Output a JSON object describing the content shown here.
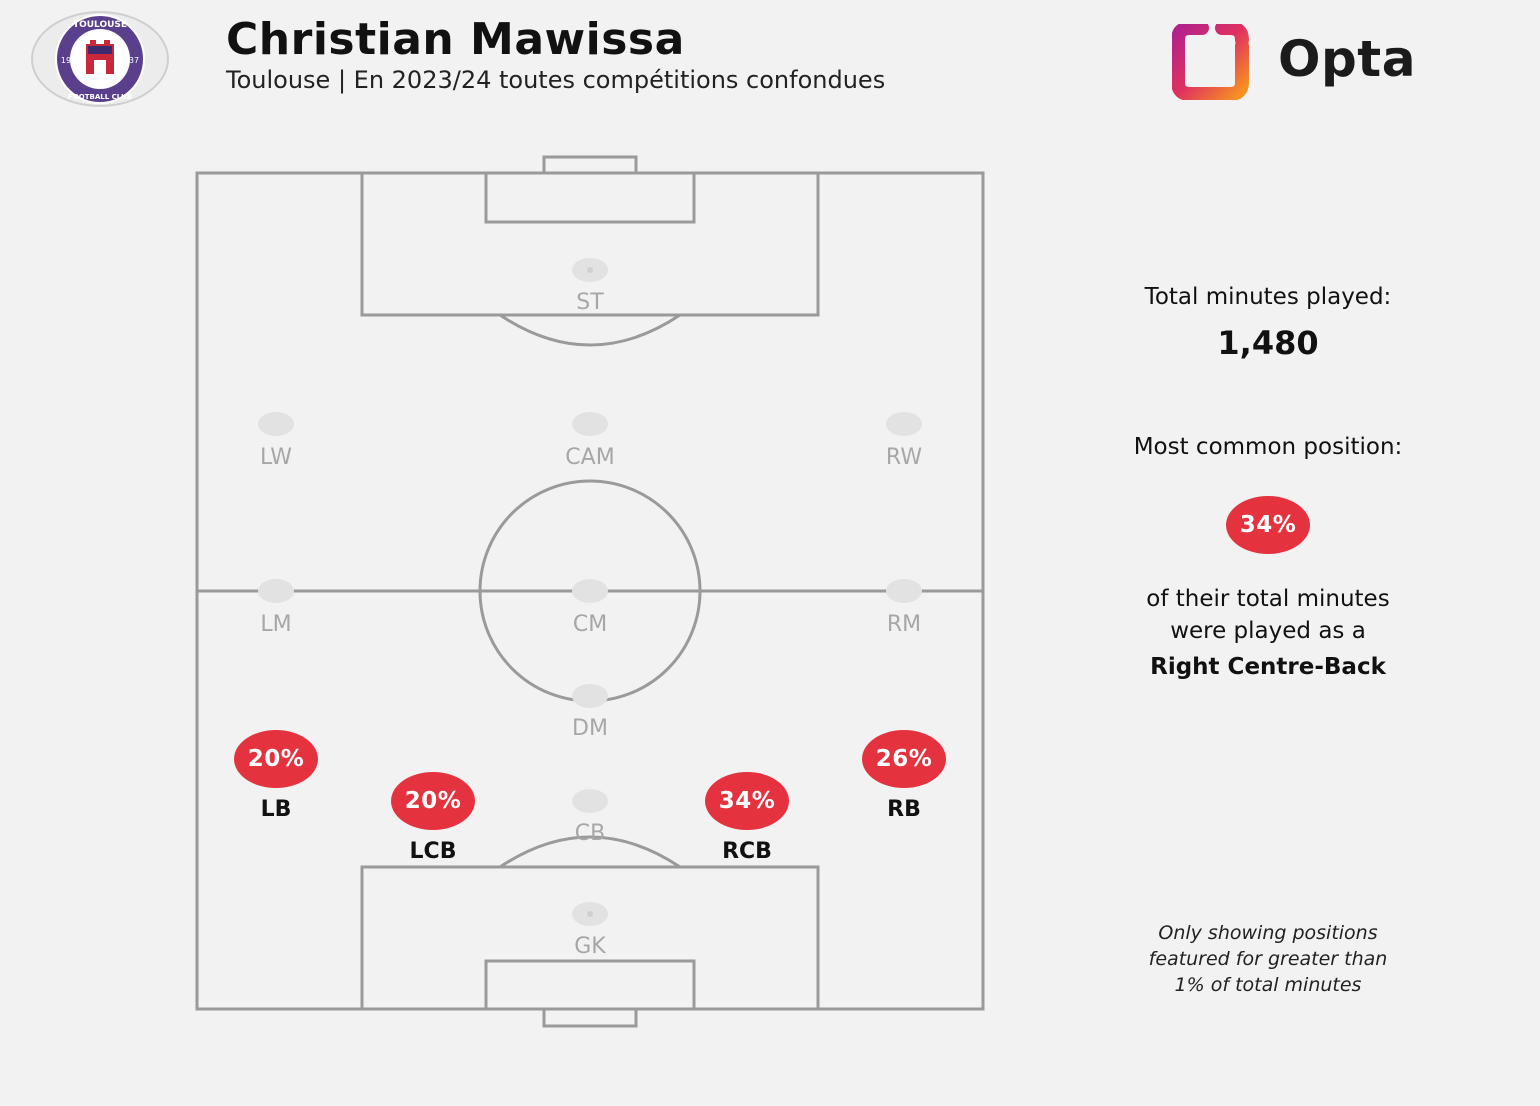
{
  "header": {
    "title": "Christian Mawissa",
    "subtitle": "Toulouse | En 2023/24 toutes compétitions confondues",
    "brand": "Opta"
  },
  "badge": {
    "text_top": "TOULOUSE",
    "text_bottom": "FOOTBALL CLUB",
    "year_left": "19",
    "year_right": "37"
  },
  "pitch": {
    "faded_positions": {
      "st": "ST",
      "lw": "LW",
      "cam": "CAM",
      "rw": "RW",
      "lm": "LM",
      "cm": "CM",
      "rm": "RM",
      "dm": "DM",
      "cb": "CB",
      "gk": "GK"
    },
    "active_positions": {
      "lb": {
        "label": "LB",
        "pct": "20%"
      },
      "lcb": {
        "label": "LCB",
        "pct": "20%"
      },
      "rcb": {
        "label": "RCB",
        "pct": "34%"
      },
      "rb": {
        "label": "RB",
        "pct": "26%"
      }
    }
  },
  "summary": {
    "minutes_label": "Total minutes played:",
    "minutes_value": "1,480",
    "common_label": "Most common position:",
    "common_pct": "34%",
    "common_text_1": "of their total minutes",
    "common_text_2": "were played as a",
    "common_position": "Right Centre-Back",
    "note_1": "Only showing positions",
    "note_2": "featured for greater than",
    "note_3": "1% of total minutes"
  },
  "colors": {
    "highlight": "#e5323f",
    "pitch_lines": "#9a9a9a",
    "background": "#f2f2f2",
    "club_purple": "#5a3f8c"
  },
  "icons": {
    "club_badge": "toulouse-badge-icon",
    "brand_logo": "opta-logo-icon"
  }
}
